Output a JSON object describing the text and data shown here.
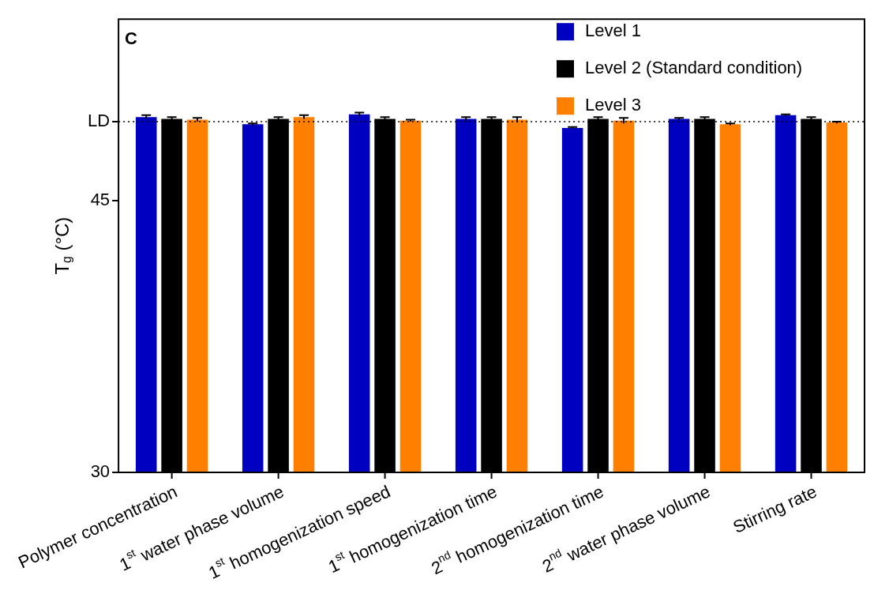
{
  "chart_data": {
    "type": "bar",
    "title": "C",
    "ylabel": "T$_{g}$ (°C)",
    "categories": [
      "Polymer concentration",
      "1$^{st}$ water phase volume",
      "1$^{st}$ homogenization speed",
      "1$^{st}$ homogenization time",
      "2$^{nd}$ homogenization time",
      "2$^{nd}$ water phase volume",
      "Stirring rate"
    ],
    "series": [
      {
        "name": "Level 1",
        "color": "#0000c0",
        "values": [
          49.6,
          49.2,
          49.75,
          49.5,
          49.0,
          49.5,
          49.7
        ],
        "errors": [
          0.1,
          0.05,
          0.1,
          0.1,
          0.05,
          0.05,
          0.05
        ]
      },
      {
        "name": "Level 2 (Standard condition)",
        "color": "#000000",
        "values": [
          49.5,
          49.5,
          49.5,
          49.5,
          49.5,
          49.5,
          49.5
        ],
        "errors": [
          0.1,
          0.1,
          0.1,
          0.1,
          0.1,
          0.1,
          0.1
        ]
      },
      {
        "name": "Level 3",
        "color": "#ff8000",
        "values": [
          49.45,
          49.6,
          49.4,
          49.45,
          49.4,
          49.2,
          49.3
        ],
        "errors": [
          0.1,
          0.1,
          0.05,
          0.15,
          0.15,
          0.05,
          0.05
        ]
      }
    ],
    "ylim": [
      30,
      55
    ],
    "yticks": [
      30,
      45,
      {
        "value": 49.35,
        "label": "LD"
      }
    ],
    "ref_lines": [
      {
        "axis": "y",
        "value": 49.35,
        "color": "#000000",
        "line_style": "dotted"
      }
    ],
    "grid": false,
    "legend": "top right"
  }
}
